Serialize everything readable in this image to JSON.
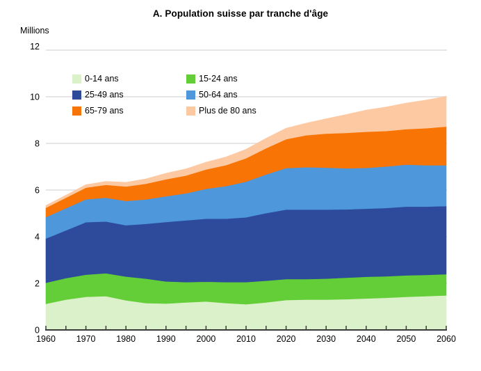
{
  "chart_data": {
    "type": "area",
    "stacked": true,
    "title": "A. Population suisse par tranche d'âge",
    "ylabel": "Millions",
    "xlabel": "",
    "ylim": [
      0,
      12
    ],
    "yticks": [
      0,
      2,
      4,
      6,
      8,
      10,
      12
    ],
    "xticks": [
      1960,
      1970,
      1980,
      1990,
      2000,
      2010,
      2020,
      2030,
      2040,
      2050,
      2060
    ],
    "xtick_minor_step": 5,
    "grid": true,
    "grid_color": "#e6e6e6",
    "axis_color": "#3a3a3a",
    "legend_position": "upper-left-inside",
    "x": [
      1960,
      1965,
      1970,
      1975,
      1980,
      1985,
      1990,
      1995,
      2000,
      2005,
      2010,
      2015,
      2020,
      2025,
      2030,
      2035,
      2040,
      2045,
      2050,
      2055,
      2060
    ],
    "series": [
      {
        "name": "0-14 ans",
        "color": "#dbf1c9",
        "values": [
          1.12,
          1.3,
          1.42,
          1.45,
          1.27,
          1.15,
          1.13,
          1.18,
          1.22,
          1.15,
          1.1,
          1.18,
          1.28,
          1.3,
          1.3,
          1.32,
          1.35,
          1.38,
          1.42,
          1.45,
          1.48
        ]
      },
      {
        "name": "15-24 ans",
        "color": "#64ce38",
        "values": [
          0.9,
          0.92,
          0.95,
          0.98,
          1.02,
          1.05,
          0.95,
          0.87,
          0.85,
          0.9,
          0.95,
          0.93,
          0.9,
          0.88,
          0.9,
          0.92,
          0.93,
          0.92,
          0.92,
          0.91,
          0.91
        ]
      },
      {
        "name": "25-49 ans",
        "color": "#2d4b9a",
        "values": [
          1.9,
          2.05,
          2.25,
          2.22,
          2.2,
          2.35,
          2.55,
          2.65,
          2.7,
          2.72,
          2.78,
          2.9,
          2.98,
          2.98,
          2.96,
          2.93,
          2.92,
          2.93,
          2.95,
          2.93,
          2.92
        ]
      },
      {
        "name": "50-64 ans",
        "color": "#4d97da",
        "values": [
          0.92,
          0.95,
          0.98,
          1.02,
          1.04,
          1.05,
          1.1,
          1.16,
          1.28,
          1.4,
          1.53,
          1.66,
          1.78,
          1.82,
          1.8,
          1.76,
          1.75,
          1.78,
          1.8,
          1.77,
          1.75
        ]
      },
      {
        "name": "65-79 ans",
        "color": "#f87405",
        "values": [
          0.4,
          0.45,
          0.5,
          0.55,
          0.62,
          0.67,
          0.73,
          0.76,
          0.83,
          0.9,
          1.0,
          1.12,
          1.24,
          1.37,
          1.46,
          1.52,
          1.55,
          1.52,
          1.52,
          1.59,
          1.66
        ]
      },
      {
        "name": "Plus de 80 ans",
        "color": "#fdc9a2",
        "values": [
          0.1,
          0.11,
          0.13,
          0.15,
          0.18,
          0.21,
          0.26,
          0.29,
          0.31,
          0.35,
          0.39,
          0.43,
          0.47,
          0.52,
          0.64,
          0.79,
          0.93,
          1.03,
          1.12,
          1.21,
          1.3
        ]
      }
    ]
  }
}
